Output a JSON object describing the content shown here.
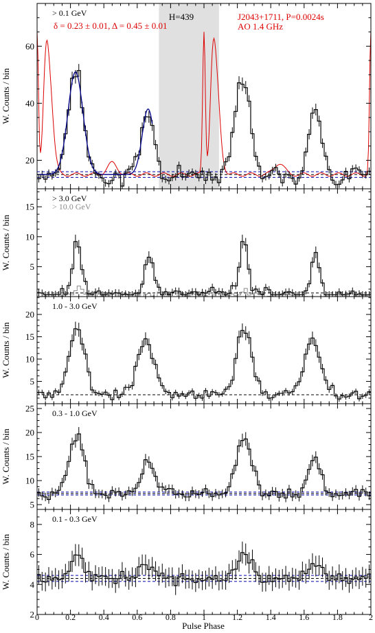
{
  "figure": {
    "xlabel": "Pulse Phase",
    "ylabel": "W. Counts / bin",
    "xlim": [
      0,
      2
    ],
    "xticks": [
      "0",
      "0.2",
      "0.4",
      "0.6",
      "0.8",
      "1",
      "1.2",
      "1.4",
      "1.6",
      "1.8",
      "2"
    ],
    "colors": {
      "data": "#000000",
      "radio": "#dd0000",
      "fit": "#00008b",
      "background_band": "#e0e0e0",
      "secondary": "#8a8a8a",
      "baseline_blue": "#0000aa"
    }
  },
  "annotations": {
    "energy": "> 0.1 GeV",
    "fit_params": "δ = 0.23 ± 0.01, Δ = 0.45 ± 0.01",
    "htest": "H=439",
    "pulsar": "J2043+1711, P=0.0024s",
    "radio": "AO 1.4 GHz"
  },
  "chart_data": [
    {
      "type": "line",
      "panel": "> 0.1 GeV",
      "label": "> 0.1 GeV",
      "ylim": [
        10,
        75
      ],
      "yticks": [
        20,
        40,
        60
      ],
      "ymax_label": 60,
      "off_pulse_region": [
        0.73,
        1.09
      ],
      "baseline": 15,
      "baseline_band": [
        14,
        16
      ],
      "peaks": [
        {
          "center": 0.23,
          "height": 36,
          "width": 0.045
        },
        {
          "center": 0.665,
          "height": 23,
          "width": 0.035
        }
      ],
      "fit_curve_range": [
        0,
        0.69
      ],
      "radio_profile": {
        "name": "AO 1.4 GHz",
        "scale_peak": 65,
        "baseline": 15,
        "components": [
          {
            "center": 0.05,
            "height": 24,
            "width": 0.015
          },
          {
            "center": 0.08,
            "height": 12,
            "width": 0.025
          },
          {
            "center": 1.0,
            "height": 50,
            "width": 0.008
          },
          {
            "center": 1.07,
            "height": 22,
            "width": 0.02
          },
          {
            "center": 0.45,
            "height": 4,
            "width": 0.03
          }
        ]
      }
    },
    {
      "type": "line",
      "panel": "> 3.0 GeV",
      "label": "> 3.0 GeV",
      "label2": "> 10.0 GeV",
      "ylim": [
        0,
        18
      ],
      "yticks": [
        5,
        10,
        15
      ],
      "baseline": 0.6,
      "peaks": [
        {
          "center": 0.24,
          "height": 9,
          "width": 0.025
        },
        {
          "center": 0.67,
          "height": 6,
          "width": 0.025
        }
      ],
      "secondary_peaks": [
        {
          "center": 0.25,
          "height": 1.5,
          "width": 0.02
        }
      ]
    },
    {
      "type": "line",
      "panel": "1.0 - 3.0 GeV",
      "label": "1.0 - 3.0 GeV",
      "ylim": [
        0,
        24
      ],
      "yticks": [
        5,
        10,
        15,
        20
      ],
      "baseline": 2,
      "peaks": [
        {
          "center": 0.24,
          "height": 15,
          "width": 0.045
        },
        {
          "center": 0.65,
          "height": 12,
          "width": 0.05
        }
      ]
    },
    {
      "type": "line",
      "panel": "0.3 - 1.0 GeV",
      "label": "0.3 - 1.0 GeV",
      "ylim": [
        4,
        26
      ],
      "yticks": [
        5,
        10,
        15,
        20,
        25
      ],
      "baseline": 7.3,
      "baseline_band": [
        7.0,
        7.6
      ],
      "peaks": [
        {
          "center": 0.24,
          "height": 12,
          "width": 0.045
        },
        {
          "center": 0.665,
          "height": 7,
          "width": 0.035
        }
      ]
    },
    {
      "type": "line",
      "panel": "0.1 - 0.3 GeV",
      "label": "0.1 - 0.3 GeV",
      "ylim": [
        2,
        9
      ],
      "yticks": [
        2,
        4,
        6,
        8
      ],
      "baseline": 4.4,
      "baseline_band": [
        4.2,
        4.6
      ],
      "peaks": [
        {
          "center": 0.24,
          "height": 1.6,
          "width": 0.04
        },
        {
          "center": 0.66,
          "height": 0.9,
          "width": 0.04
        }
      ]
    }
  ]
}
